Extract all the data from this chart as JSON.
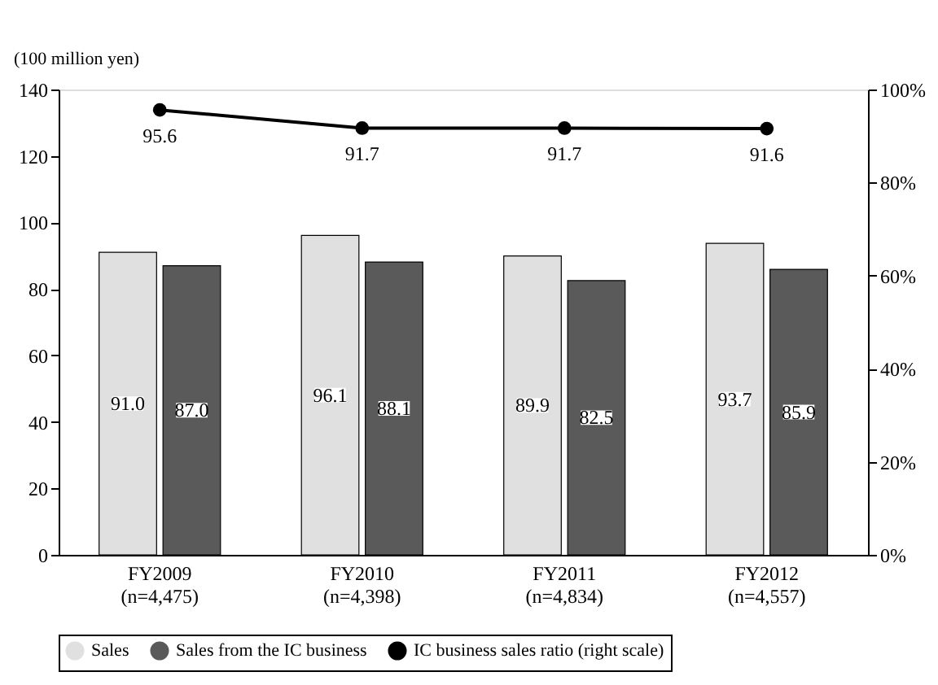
{
  "chart_data": {
    "type": "bar",
    "ylabel": "(100 million yen)",
    "categories": [
      "FY2009\n(n=4,475)",
      "FY2010\n(n=4,398)",
      "FY2011\n(n=4,834)",
      "FY2012\n(n=4,557)"
    ],
    "series": [
      {
        "name": "Sales",
        "color": "#e0e0e0",
        "values": [
          91.0,
          96.1,
          89.9,
          93.7
        ],
        "value_labels": [
          "91.0",
          "96.1",
          "89.9",
          "93.7"
        ]
      },
      {
        "name": "Sales from the IC business",
        "color": "#5a5a5a",
        "values": [
          87.0,
          88.1,
          82.5,
          85.9
        ],
        "value_labels": [
          "87.0",
          "88.1",
          "82.5",
          "85.9"
        ]
      },
      {
        "name": "IC business sales ratio (right scale)",
        "type": "line",
        "axis": "y2",
        "color": "#000000",
        "marker": "circle",
        "values": [
          95.6,
          91.7,
          91.7,
          91.6
        ],
        "value_labels": [
          "95.6",
          "91.7",
          "91.7",
          "91.6"
        ]
      }
    ],
    "ylim": [
      0,
      140
    ],
    "yticks": [
      0,
      20,
      40,
      60,
      80,
      100,
      120,
      140
    ],
    "y2lim": [
      0,
      100
    ],
    "y2ticks": [
      {
        "value": 0,
        "label": "0%"
      },
      {
        "value": 20,
        "label": "20%"
      },
      {
        "value": 40,
        "label": "40%"
      },
      {
        "value": 60,
        "label": "60%"
      },
      {
        "value": 80,
        "label": "80%"
      },
      {
        "value": 100,
        "label": "100%"
      }
    ],
    "grid": false,
    "legend": "bottom"
  }
}
